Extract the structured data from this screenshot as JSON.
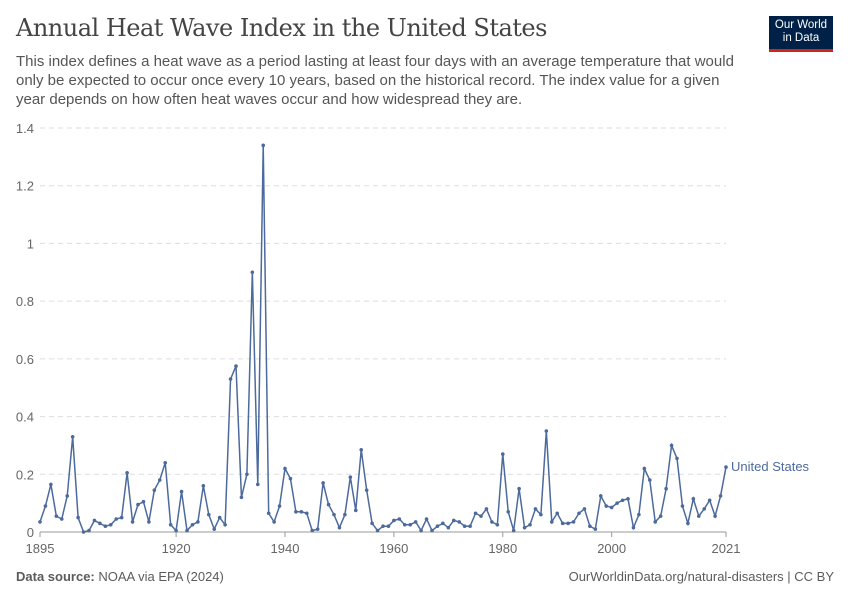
{
  "header": {
    "title": "Annual Heat Wave Index in the United States",
    "subtitle": "This index defines a heat wave as a period lasting at least four days with an average temperature that would only be expected to occur once every 10 years, based on the historical record. The index value for a given year depends on how often heat waves occur and how widespread they are.",
    "logo": "Our World in Data"
  },
  "footer": {
    "source_label": "Data source:",
    "source": "NOAA via EPA (2024)",
    "credit": "OurWorldinData.org/natural-disasters | CC BY"
  },
  "chart_data": {
    "type": "line",
    "title": "Annual Heat Wave Index in the United States",
    "xlim": [
      1895,
      2021
    ],
    "ylim": [
      0,
      1.4
    ],
    "grid": "horizontal dashed",
    "xticks": [
      1895,
      1920,
      1940,
      1960,
      1980,
      2000,
      2021
    ],
    "yticks": [
      0,
      0.2,
      0.4,
      0.6,
      0.8,
      1,
      1.2,
      1.4
    ],
    "ytick_labels": [
      "0",
      "0.2",
      "0.4",
      "0.6",
      "0.8",
      "1",
      "1.2",
      "1.4"
    ],
    "color": "#4c6a9c",
    "series": [
      {
        "name": "United States",
        "start_year": 1895,
        "values": [
          0.035,
          0.09,
          0.165,
          0.055,
          0.045,
          0.125,
          0.33,
          0.05,
          0.0,
          0.005,
          0.04,
          0.03,
          0.02,
          0.025,
          0.045,
          0.05,
          0.205,
          0.035,
          0.095,
          0.105,
          0.035,
          0.145,
          0.18,
          0.24,
          0.025,
          0.005,
          0.14,
          0.005,
          0.025,
          0.035,
          0.16,
          0.06,
          0.01,
          0.05,
          0.025,
          0.53,
          0.575,
          0.12,
          0.2,
          0.9,
          0.165,
          1.34,
          0.065,
          0.035,
          0.09,
          0.22,
          0.185,
          0.07,
          0.07,
          0.065,
          0.005,
          0.01,
          0.17,
          0.095,
          0.06,
          0.015,
          0.06,
          0.19,
          0.075,
          0.285,
          0.145,
          0.03,
          0.005,
          0.02,
          0.02,
          0.04,
          0.045,
          0.025,
          0.025,
          0.035,
          0.005,
          0.045,
          0.005,
          0.02,
          0.03,
          0.015,
          0.04,
          0.035,
          0.02,
          0.02,
          0.065,
          0.055,
          0.08,
          0.035,
          0.025,
          0.27,
          0.07,
          0.005,
          0.15,
          0.015,
          0.025,
          0.08,
          0.06,
          0.35,
          0.035,
          0.065,
          0.03,
          0.03,
          0.035,
          0.065,
          0.08,
          0.02,
          0.01,
          0.125,
          0.09,
          0.085,
          0.1,
          0.11,
          0.115,
          0.015,
          0.06,
          0.22,
          0.18,
          0.035,
          0.055,
          0.15,
          0.3,
          0.255,
          0.09,
          0.03,
          0.115,
          0.055,
          0.08,
          0.11,
          0.055,
          0.125,
          0.225
        ]
      }
    ]
  }
}
